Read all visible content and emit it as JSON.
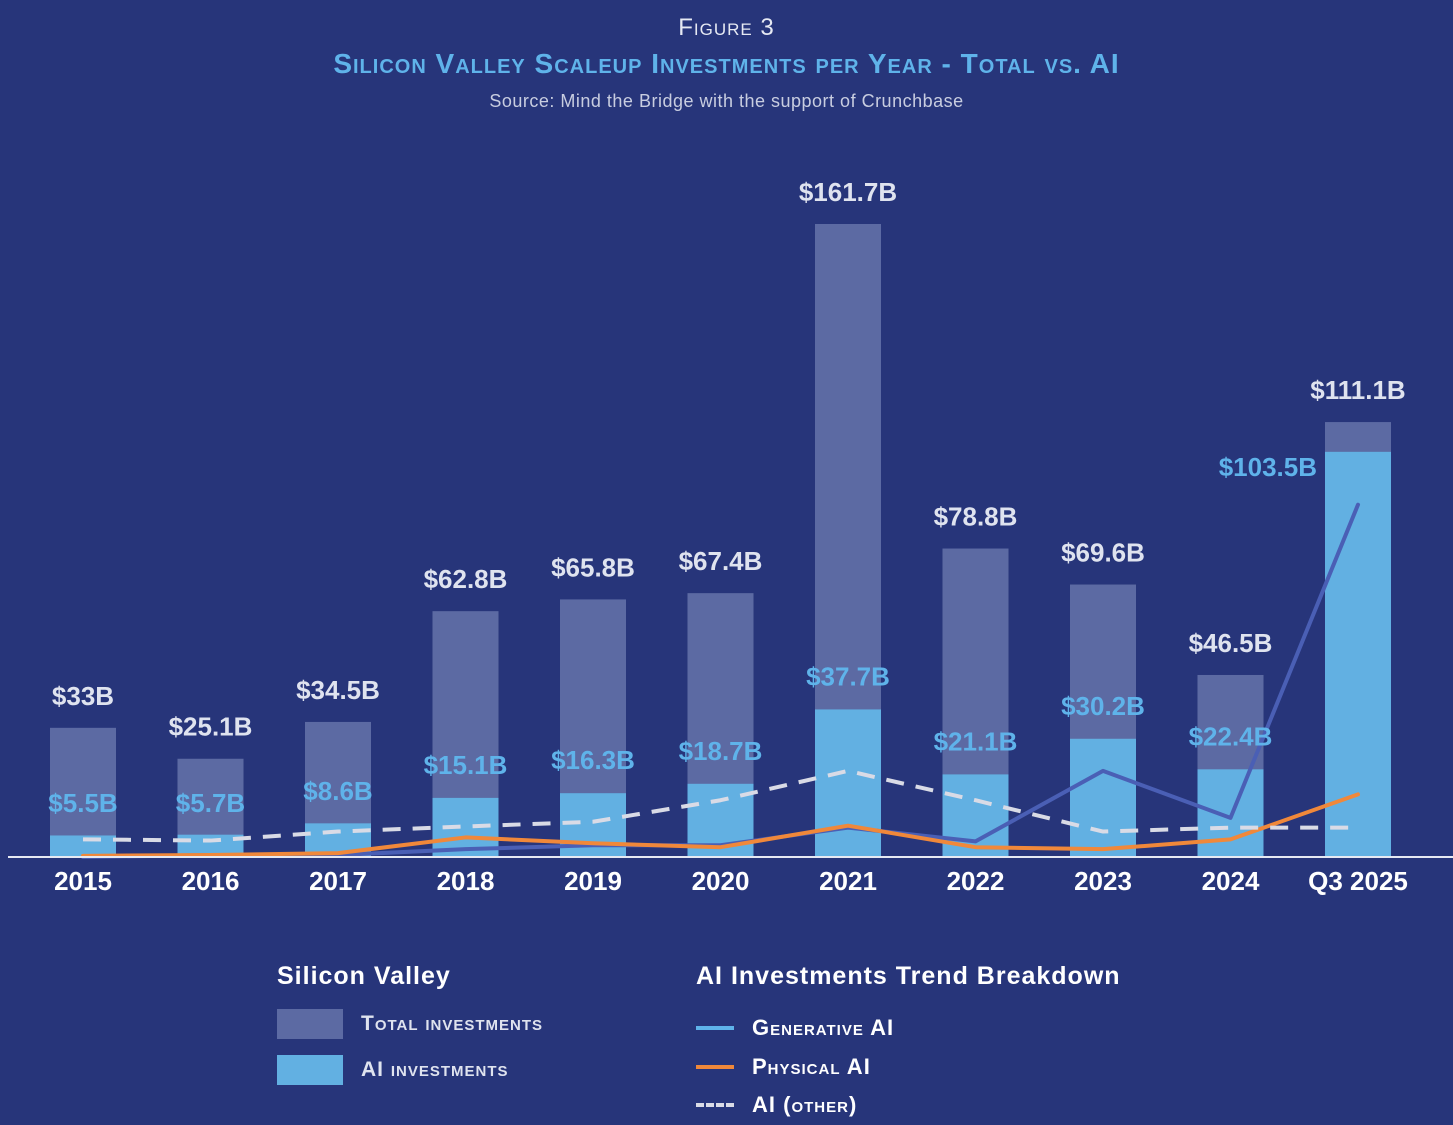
{
  "header": {
    "figure_label": "Figure 3",
    "title": "Silicon Valley Scaleup Investments per Year - Total vs. AI",
    "source": "Source: Mind the Bridge with the support of Crunchbase"
  },
  "colors": {
    "background": "#27357a",
    "total_bar": "#5c6aa3",
    "ai_bar": "#62b0e2",
    "generative_ai": "#4a5fb5",
    "physical_ai": "#f0883a",
    "ai_other": "#d9dbe6",
    "total_label": "#dfe3ef",
    "ai_label": "#5fb3ea"
  },
  "chart_data": {
    "type": "bar",
    "categories": [
      "2015",
      "2016",
      "2017",
      "2018",
      "2019",
      "2020",
      "2021",
      "2022",
      "2023",
      "2024",
      "Q3 2025"
    ],
    "series": [
      {
        "name": "Total Investments",
        "values": [
          33,
          25.1,
          34.5,
          62.8,
          65.8,
          67.4,
          161.7,
          78.8,
          69.6,
          46.5,
          111.1
        ],
        "labels": [
          "$33B",
          "$25.1B",
          "$34.5B",
          "$62.8B",
          "$65.8B",
          "$67.4B",
          "$161.7B",
          "$78.8B",
          "$69.6B",
          "$46.5B",
          "$111.1B"
        ]
      },
      {
        "name": "AI Investments",
        "values": [
          5.5,
          5.7,
          8.6,
          15.1,
          16.3,
          18.7,
          37.7,
          21.1,
          30.2,
          22.4,
          103.5
        ],
        "labels": [
          "$5.5B",
          "$5.7B",
          "$8.6B",
          "$15.1B",
          "$16.3B",
          "$18.7B",
          "$37.7B",
          "$21.1B",
          "$30.2B",
          "$22.4B",
          "$103.5B"
        ]
      }
    ],
    "trend_lines": [
      {
        "name": "Generative AI",
        "style": "solid",
        "values": [
          0,
          0.5,
          0.5,
          2,
          3,
          3,
          7.5,
          4,
          22,
          10,
          90
        ]
      },
      {
        "name": "Physical AI",
        "style": "solid",
        "values": [
          0.3,
          0.5,
          1,
          5,
          3.5,
          2.5,
          8,
          2.5,
          2,
          4.5,
          16
        ]
      },
      {
        "name": "AI (Other)",
        "style": "dashed",
        "values": [
          4.5,
          4.2,
          6.5,
          7.8,
          9,
          14.5,
          22,
          14.5,
          6.5,
          7.5,
          7.5
        ]
      }
    ],
    "ylim": [
      0,
      170
    ],
    "xlabel": "",
    "ylabel": ""
  },
  "legend": {
    "left_title": "Silicon Valley",
    "total_label": "Total investments",
    "ai_label": "AI investments",
    "right_title": "AI Investments Trend Breakdown",
    "generative_label": "Generative AI",
    "physical_label": "Physical AI",
    "other_label": "AI (other)"
  }
}
